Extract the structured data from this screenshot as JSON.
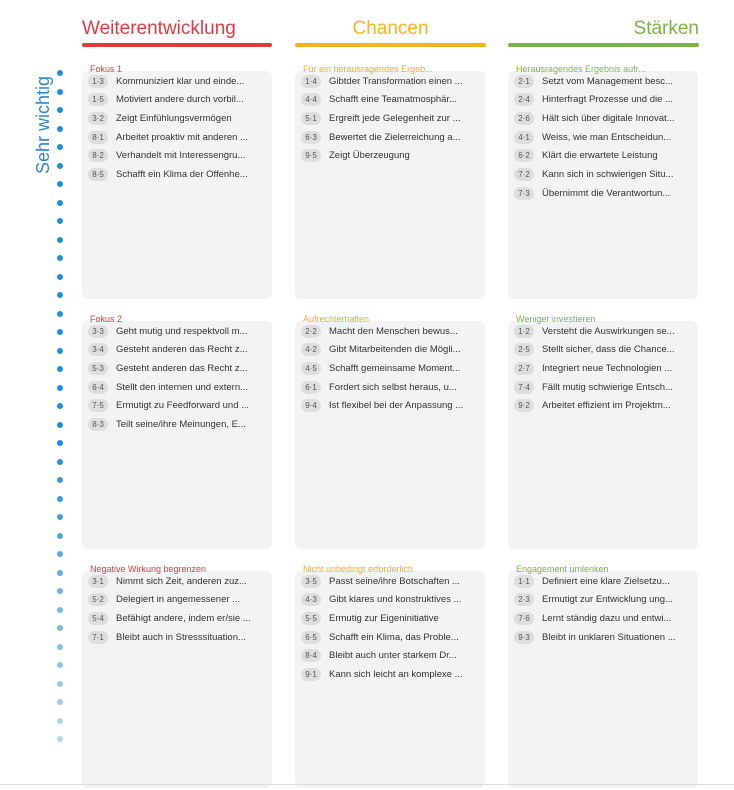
{
  "side_label": "Sehr wichtig",
  "columns": [
    {
      "title": "Weiterentwicklung",
      "color": "#e03a3e"
    },
    {
      "title": "Chancen",
      "color": "#f9b21b"
    },
    {
      "title": "Stärken",
      "color": "#7cb342"
    }
  ],
  "panels": [
    {
      "title": "Fokus 1",
      "title_color": "#e03a3e",
      "items": [
        {
          "code": "1·3",
          "text": "Kommuniziert klar und einde..."
        },
        {
          "code": "1·5",
          "text": "Motiviert andere durch vorbil..."
        },
        {
          "code": "3·2",
          "text": "Zeigt Einfühlungsvermögen"
        },
        {
          "code": "8·1",
          "text": "Arbeitet proaktiv mit anderen ..."
        },
        {
          "code": "8·2",
          "text": "Verhandelt mit Interessengru..."
        },
        {
          "code": "8·5",
          "text": "Schafft ein Klima der Offenhe..."
        }
      ]
    },
    {
      "title": "Für ein herausragendes Ergeb...",
      "title_color": "#f9a825",
      "items": [
        {
          "code": "1·4",
          "text": "Gibtder Transformation einen ..."
        },
        {
          "code": "4·4",
          "text": "Schafft eine Teamatmosphär..."
        },
        {
          "code": "5·1",
          "text": "Ergreift jede Gelegenheit zur ..."
        },
        {
          "code": "6·3",
          "text": "Bewertet die Zielerreichung a..."
        },
        {
          "code": "9·5",
          "text": "Zeigt Überzeugung"
        }
      ]
    },
    {
      "title": "Herausragendes Ergebnis aufr...",
      "title_color": "#7cb342",
      "items": [
        {
          "code": "2·1",
          "text": "Setzt vom Management besc..."
        },
        {
          "code": "2·4",
          "text": "Hinterfragt Prozesse und die ..."
        },
        {
          "code": "2·6",
          "text": "Hält sich über digitale Innovat..."
        },
        {
          "code": "4·1",
          "text": "Weiss, wie man Entscheidun..."
        },
        {
          "code": "6·2",
          "text": "Klärt die erwartete Leistung"
        },
        {
          "code": "7·2",
          "text": "Kann sich in schwierigen Situ..."
        },
        {
          "code": "7·3",
          "text": "Übernimmt die Verantwortun..."
        }
      ]
    },
    {
      "title": "Fokus 2",
      "title_color": "#e03a3e",
      "items": [
        {
          "code": "3·3",
          "text": "Geht mutig und respektvoll m..."
        },
        {
          "code": "3·4",
          "text": "Gesteht anderen das Recht z..."
        },
        {
          "code": "5·3",
          "text": "Gesteht anderen das Recht z..."
        },
        {
          "code": "6·4",
          "text": "Stellt den internen und extern..."
        },
        {
          "code": "7·5",
          "text": "Ermutigt zu Feedforward und ..."
        },
        {
          "code": "8·3",
          "text": "Teilt seine/ihre Meinungen, E..."
        }
      ]
    },
    {
      "title": "Aufrechterhalten",
      "title_color": "#f9a825",
      "items": [
        {
          "code": "2·2",
          "text": "Macht den Menschen bewus..."
        },
        {
          "code": "4·2",
          "text": "Gibt Mitarbeitenden die Mögli..."
        },
        {
          "code": "4·5",
          "text": "Schafft gemeinsame Moment..."
        },
        {
          "code": "6·1",
          "text": "Fordert sich selbst heraus, u..."
        },
        {
          "code": "9·4",
          "text": "Ist flexibel bei der Anpassung ..."
        }
      ]
    },
    {
      "title": "Weniger investieren",
      "title_color": "#7cb342",
      "items": [
        {
          "code": "1·2",
          "text": "Versteht die Auswirkungen se..."
        },
        {
          "code": "2·5",
          "text": "Stellt sicher, dass die Chance..."
        },
        {
          "code": "2·7",
          "text": "Integriert neue Technologien ..."
        },
        {
          "code": "7·4",
          "text": "Fällt mutig schwierige Entsch..."
        },
        {
          "code": "9·2",
          "text": "Arbeitet effizient im Projektm..."
        }
      ]
    },
    {
      "title": "Negative Wirkung begrenzen",
      "title_color": "#e03a3e",
      "items": [
        {
          "code": "3·1",
          "text": "Nimmt sich Zeit, anderen zuz..."
        },
        {
          "code": "5·2",
          "text": "Delegiert in angemessener ..."
        },
        {
          "code": "5·4",
          "text": "Befähigt andere, indem er/sie ..."
        },
        {
          "code": "7·1",
          "text": "Bleibt auch in Stresssituation..."
        }
      ]
    },
    {
      "title": "Nicht unbedingt erforderlich",
      "title_color": "#f9a825",
      "items": [
        {
          "code": "3·5",
          "text": "Passt seine/ihre Botschaften ..."
        },
        {
          "code": "4·3",
          "text": "Gibt klares und konstruktives ..."
        },
        {
          "code": "5·5",
          "text": "Ermutig zur Eigeninitiative"
        },
        {
          "code": "6·5",
          "text": "Schafft ein Klima, das Proble..."
        },
        {
          "code": "8·4",
          "text": "Bleibt auch unter starkem Dr..."
        },
        {
          "code": "9·1",
          "text": "Kann sich leicht an komplexe ..."
        }
      ]
    },
    {
      "title": "Engagement umlenken",
      "title_color": "#7cb342",
      "items": [
        {
          "code": "1·1",
          "text": "Definiert eine klare Zielsetzu..."
        },
        {
          "code": "2·3",
          "text": "Ermutigt zur Entwicklung ung..."
        },
        {
          "code": "7·6",
          "text": "Lernt ständig dazu und entwi..."
        },
        {
          "code": "9·3",
          "text": "Bleibt in unklaren Situationen ..."
        }
      ]
    }
  ]
}
